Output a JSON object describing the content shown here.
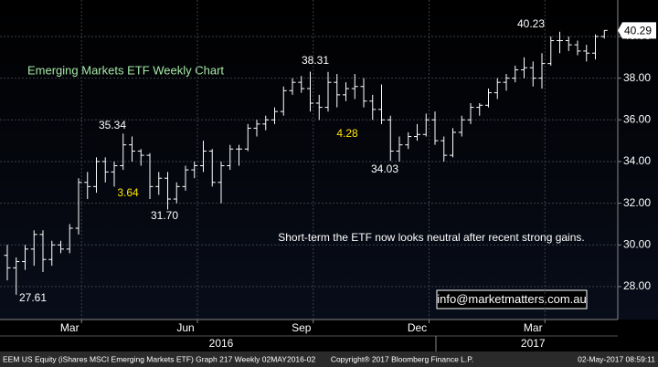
{
  "chart_data": {
    "type": "ohlc",
    "title": "Emerging Markets ETF Weekly Chart",
    "color": "#ffffff",
    "open": [
      29.5,
      28.9,
      29.2,
      29.8,
      30.5,
      29.3,
      30.0,
      29.8,
      30.8,
      33.0,
      32.8,
      34.0,
      33.5,
      33.8,
      34.8,
      34.5,
      34.3,
      32.8,
      33.2,
      32.2,
      32.8,
      33.6,
      33.8,
      34.5,
      33.0,
      33.8,
      34.6,
      34.6,
      35.6,
      35.8,
      36.0,
      36.4,
      37.4,
      37.8,
      37.5,
      36.8,
      36.6,
      37.8,
      37.2,
      37.5,
      37.6,
      36.9,
      36.5,
      36.0,
      34.5,
      34.8,
      35.2,
      35.3,
      36.0,
      35.0,
      34.3,
      35.4,
      36.0,
      36.6,
      36.7,
      37.3,
      37.8,
      38.0,
      38.4,
      38.5,
      38.0,
      38.7,
      39.8,
      39.8,
      39.6,
      39.3,
      39.2,
      40.0
    ],
    "high": [
      30.0,
      29.4,
      30.0,
      30.7,
      30.7,
      30.2,
      30.2,
      31.0,
      33.2,
      33.5,
      34.2,
      34.2,
      34.0,
      35.34,
      35.2,
      34.6,
      34.4,
      33.5,
      33.5,
      33.0,
      33.8,
      34.0,
      35.0,
      34.6,
      34.0,
      34.8,
      34.8,
      35.8,
      36.0,
      36.2,
      36.6,
      37.6,
      38.0,
      38.1,
      38.31,
      37.2,
      38.3,
      38.2,
      37.8,
      38.2,
      38.0,
      37.2,
      37.7,
      36.2,
      35.2,
      35.4,
      35.8,
      36.3,
      36.4,
      35.2,
      35.6,
      36.2,
      36.8,
      36.8,
      37.5,
      38.0,
      38.2,
      38.6,
      39.0,
      38.8,
      39.2,
      40.0,
      40.23,
      40.0,
      39.8,
      39.6,
      40.1,
      40.3
    ],
    "low": [
      28.3,
      27.61,
      28.8,
      29.0,
      28.7,
      29.0,
      29.6,
      29.6,
      30.5,
      32.2,
      32.5,
      33.0,
      32.8,
      33.6,
      34.0,
      33.8,
      32.2,
      32.4,
      31.7,
      32.0,
      32.6,
      33.2,
      33.5,
      32.8,
      32.0,
      33.6,
      33.8,
      34.5,
      35.2,
      35.5,
      35.8,
      36.2,
      37.2,
      37.3,
      36.4,
      36.0,
      36.4,
      36.6,
      36.9,
      37.0,
      36.6,
      36.0,
      35.8,
      34.03,
      34.0,
      34.6,
      35.0,
      35.2,
      34.8,
      34.0,
      34.2,
      35.2,
      35.8,
      36.2,
      36.6,
      37.0,
      37.4,
      37.8,
      38.0,
      37.6,
      37.5,
      38.6,
      39.2,
      39.3,
      39.1,
      38.8,
      38.9,
      39.9
    ],
    "close": [
      28.9,
      29.2,
      29.8,
      30.5,
      29.3,
      30.0,
      29.8,
      30.8,
      33.0,
      32.8,
      34.0,
      33.5,
      33.8,
      34.8,
      34.5,
      34.3,
      32.8,
      33.2,
      32.2,
      32.8,
      33.6,
      33.8,
      34.5,
      33.0,
      33.8,
      34.6,
      34.6,
      35.6,
      35.8,
      36.0,
      36.4,
      37.4,
      37.8,
      37.5,
      36.8,
      36.6,
      37.8,
      37.2,
      37.5,
      37.6,
      36.9,
      36.5,
      36.0,
      34.5,
      34.8,
      35.2,
      35.3,
      36.0,
      35.0,
      34.3,
      35.4,
      36.0,
      36.6,
      36.7,
      37.3,
      37.8,
      38.0,
      38.4,
      38.5,
      38.0,
      38.7,
      39.8,
      39.8,
      39.6,
      39.3,
      39.2,
      40.0,
      40.29
    ],
    "ylim": [
      26.42,
      41.75
    ],
    "yticks": [
      {
        "value": 28,
        "label": "28.00"
      },
      {
        "value": 30,
        "label": "30.00"
      },
      {
        "value": 32,
        "label": "32.00"
      },
      {
        "value": 34,
        "label": "34.00"
      },
      {
        "value": 36,
        "label": "36.00"
      },
      {
        "value": 38,
        "label": "38.00"
      },
      {
        "value": 40,
        "label": "40.00"
      }
    ],
    "xticks": [
      {
        "value": 7,
        "label": "Mar"
      },
      {
        "value": 20,
        "label": "Jun"
      },
      {
        "value": 33,
        "label": "Sep"
      },
      {
        "value": 46,
        "label": "Dec"
      },
      {
        "value": 59,
        "label": "Mar"
      }
    ],
    "year_labels": [
      {
        "value": 24,
        "label": "2016"
      },
      {
        "value": 59,
        "label": "2017"
      }
    ],
    "grid": true,
    "last_price": 40.29,
    "annotations": [
      "40.23",
      "38.31",
      "35.34",
      "3.64",
      "31.70",
      "4.28",
      "34.03",
      "27.61",
      "Short-term the ETF now looks neutral after recent strong gains."
    ],
    "watermark": "info@marketmatters.com.au"
  },
  "footer": {
    "left": "EEM US Equity (iShares MSCI Emerging Markets ETF) Graph 217  Weekly 02MAY2016-02",
    "center": "Copyright® 2017 Bloomberg Finance L.P.",
    "right": "02-May-2017 08:59:11"
  }
}
